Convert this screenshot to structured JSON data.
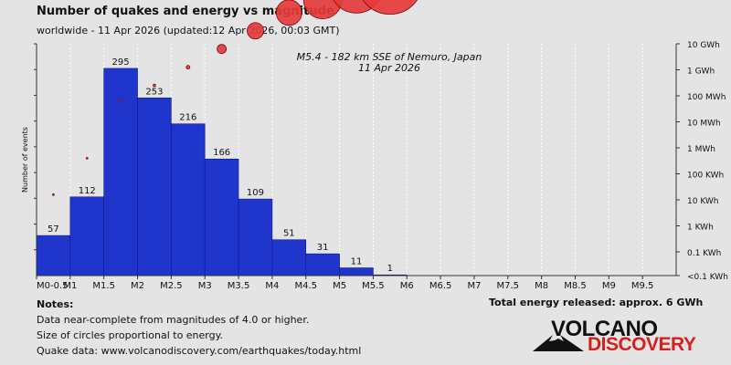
{
  "header": {
    "title": "Number of quakes and energy vs magnitude",
    "subtitle": "worldwide - 11 Apr 2026 (updated:12 Apr 2026, 00:03 GMT)"
  },
  "notes": {
    "heading": "Notes:",
    "line1": "Data near-complete from magnitudes of 4.0 or higher.",
    "line2": "Size of circles proportional to energy.",
    "line3": "Quake data: www.volcanodiscovery.com/earthquakes/today.html"
  },
  "total_energy": "Total energy released: approx. 6 GWh",
  "logo": {
    "word1": "VOLCANO",
    "word2": "DISCOVERY"
  },
  "colors": {
    "background": "#e4e4e4",
    "bar_fill": "#1f35cc",
    "bar_stroke": "#0a1a8c",
    "circle_fill": "#e53b3b",
    "circle_stroke": "#7a0a0a",
    "logo_red": "#d6201c"
  },
  "chart_data": {
    "type": "bar",
    "ylabel": "Number of events",
    "categories": [
      "M0-0.5",
      "M0.5-1",
      "M1-1.5",
      "M1.5-2",
      "M2-2.5",
      "M2.5-3",
      "M3-3.5",
      "M3.5-4",
      "M4-4.5",
      "M4.5-5",
      "M5-5.5"
    ],
    "values": [
      57,
      112,
      295,
      253,
      216,
      166,
      109,
      51,
      31,
      11,
      1
    ],
    "x_tick_labels": [
      "M0-0.5",
      "M1",
      "M1.5",
      "M2",
      "M2.5",
      "M3",
      "M3.5",
      "M4",
      "M4.5",
      "M5",
      "M5.5",
      "M6",
      "M6.5",
      "M7",
      "M7.5",
      "M8",
      "M8.5",
      "M9",
      "M9.5"
    ],
    "energy_axis_labels": [
      "10 GWh",
      "1 GWh",
      "100 MWh",
      "10 MWh",
      "1 MWh",
      "100 KWh",
      "10 KWh",
      "1 KWh",
      "0.1 KWh",
      "<0.1 KWh"
    ],
    "energy_series": {
      "log10_kwh": [
        1.2,
        2.6,
        4.8,
        5.4,
        6.1,
        6.8,
        7.5,
        8.2,
        8.7,
        9.2,
        9.4
      ],
      "circle_units": [
        1,
        1,
        1.2,
        1.4,
        2,
        5,
        9,
        14,
        21,
        29,
        36
      ]
    },
    "annotation": {
      "line1": "M5.4 - 182 km SSE of Nemuro, Japan",
      "line2": "11 Apr 2026"
    }
  }
}
